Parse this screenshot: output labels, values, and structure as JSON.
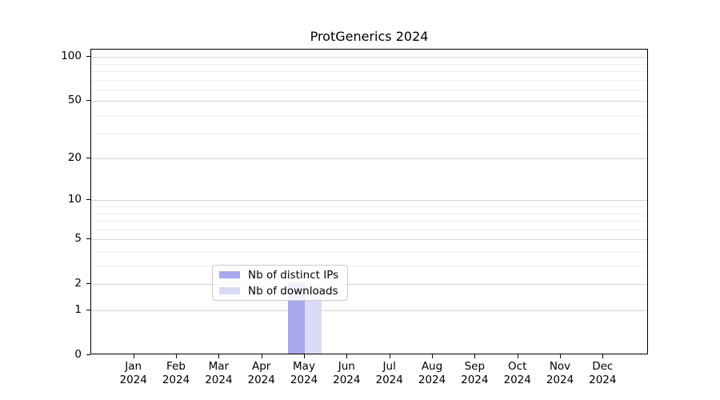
{
  "title": "ProtGenerics 2024",
  "chart_data": {
    "type": "bar",
    "categories": [
      "Jan",
      "Feb",
      "Mar",
      "Apr",
      "May",
      "Jun",
      "Jul",
      "Aug",
      "Sep",
      "Oct",
      "Nov",
      "Dec"
    ],
    "year_label": "2024",
    "series": [
      {
        "name": "Nb of distinct IPs",
        "color": "#a8a8ee",
        "values": [
          0,
          0,
          0,
          0,
          2,
          0,
          0,
          0,
          0,
          0,
          0,
          0
        ]
      },
      {
        "name": "Nb of downloads",
        "color": "#dadaf6",
        "values": [
          0,
          0,
          0,
          0,
          2,
          0,
          0,
          0,
          0,
          0,
          0,
          0
        ]
      }
    ],
    "yscale": "log1p",
    "yticks": [
      0,
      1,
      2,
      5,
      10,
      20,
      50,
      100
    ],
    "minor_gridline_values": [
      3,
      4,
      6,
      7,
      8,
      9,
      30,
      40,
      60,
      70,
      80,
      90
    ],
    "ylim": [
      0,
      112
    ],
    "grid": true,
    "legend_position": "inside lower-center"
  },
  "colors": {
    "major_grid": "#d4d4d4",
    "minor_grid": "#efefef",
    "axis": "#000000",
    "legend_border": "#cccccc",
    "text": "#000000"
  }
}
